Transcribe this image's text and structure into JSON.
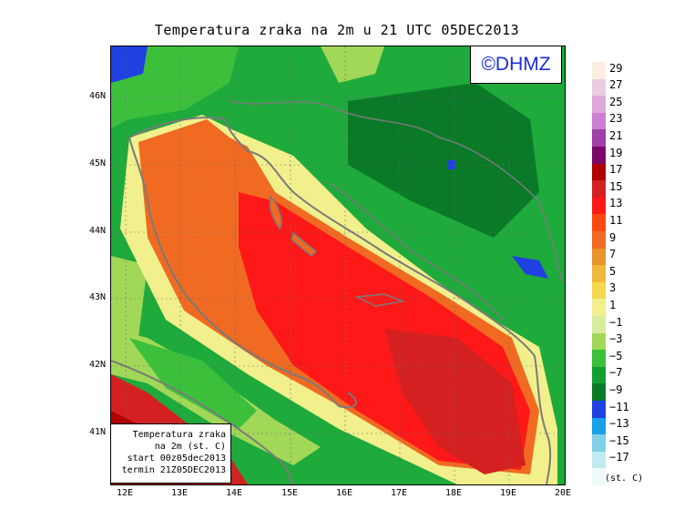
{
  "title": "Temperatura zraka na 2m u 21 UTC 05DEC2013",
  "logo": "©DHMZ",
  "info_box": {
    "line1": "Temperatura zraka",
    "line2": "na 2m (st. C)",
    "line3": "start 00z05dec2013",
    "line4": "termin 21Z05DEC2013"
  },
  "y_ticks": [
    "46N",
    "45N",
    "44N",
    "43N",
    "42N",
    "41N"
  ],
  "x_ticks": [
    "12E",
    "13E",
    "14E",
    "15E",
    "16E",
    "17E",
    "18E",
    "19E",
    "20E"
  ],
  "legend": {
    "unit": "(st. C)",
    "labels": [
      "29",
      "27",
      "25",
      "23",
      "21",
      "19",
      "17",
      "15",
      "13",
      "11",
      "9",
      "7",
      "5",
      "3",
      "1",
      "−1",
      "−3",
      "−5",
      "−7",
      "−9",
      "−11",
      "−13",
      "−15",
      "−17"
    ],
    "colors": [
      "#fbeee0",
      "#e8cce0",
      "#dfa8d8",
      "#cc7fd0",
      "#a040a8",
      "#7c0868",
      "#b00000",
      "#d42020",
      "#ff1818",
      "#f84a10",
      "#f06a22",
      "#e8932c",
      "#f0b83a",
      "#f4d94e",
      "#f2f08c",
      "#d8eca0",
      "#a2d858",
      "#3cc03c",
      "#12a032",
      "#0a7a28",
      "#2040e0",
      "#18a0e8",
      "#80d0e8",
      "#c0eaf0",
      "#eefafa"
    ]
  },
  "colors": {
    "land_green": "#1faa3c",
    "coast_line": "#7a7a7a",
    "logo_blue": "#1a2fd6"
  }
}
